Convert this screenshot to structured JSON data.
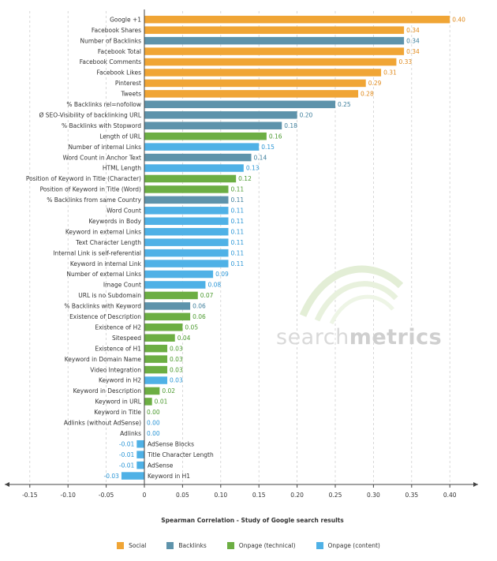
{
  "watermark": {
    "light": "search",
    "bold": "metrics"
  },
  "colors": {
    "Social": "#f0a535",
    "Backlinks": "#5e93ab",
    "Onpage (technical)": "#6cae43",
    "Onpage (content)": "#4fb1e6",
    "Social_text": "#e08a1c",
    "Backlinks_text": "#3f7f9c",
    "Onpage (technical)_text": "#4b9a2e",
    "Onpage (content)_text": "#2b96d6"
  },
  "chart_data": {
    "type": "bar",
    "orientation": "horizontal",
    "title": "",
    "xlabel": "Spearman Correlation - Study of Google search results",
    "ylabel": "",
    "xlim": [
      -0.18,
      0.44
    ],
    "xticks": [
      -0.15,
      -0.1,
      -0.05,
      0,
      0.05,
      0.1,
      0.15,
      0.2,
      0.25,
      0.3,
      0.35,
      0.4
    ],
    "xtick_labels": [
      "-0.15",
      "-0.10",
      "-0.05",
      "0",
      "0.05",
      "0.10",
      "0.15",
      "0.20",
      "0.25",
      "0.30",
      "0.35",
      "0.40"
    ],
    "grid": "vertical dashed",
    "legend_position": "bottom",
    "series": [
      {
        "name": "Social"
      },
      {
        "name": "Backlinks"
      },
      {
        "name": "Onpage (technical)"
      },
      {
        "name": "Onpage (content)"
      }
    ],
    "bars": [
      {
        "label": "Google +1",
        "value": 0.4,
        "value_label": "0.40",
        "series": "Social"
      },
      {
        "label": "Facebook Shares",
        "value": 0.34,
        "value_label": "0.34",
        "series": "Social"
      },
      {
        "label": "Number of Backlinks",
        "value": 0.34,
        "value_label": "0.34",
        "series": "Backlinks"
      },
      {
        "label": "Facebook Total",
        "value": 0.34,
        "value_label": "0.34",
        "series": "Social"
      },
      {
        "label": "Facebook Comments",
        "value": 0.33,
        "value_label": "0.33",
        "series": "Social"
      },
      {
        "label": "Facebook Likes",
        "value": 0.31,
        "value_label": "0.31",
        "series": "Social"
      },
      {
        "label": "Pinterest",
        "value": 0.29,
        "value_label": "0.29",
        "series": "Social"
      },
      {
        "label": "Tweets",
        "value": 0.28,
        "value_label": "0.28",
        "series": "Social"
      },
      {
        "label": "% Backlinks rel=nofollow",
        "value": 0.25,
        "value_label": "0.25",
        "series": "Backlinks"
      },
      {
        "label": "Ø SEO-Visibility of backlinking URL",
        "value": 0.2,
        "value_label": "0.20",
        "series": "Backlinks"
      },
      {
        "label": "% Backlinks with Stopword",
        "value": 0.18,
        "value_label": "0.18",
        "series": "Backlinks"
      },
      {
        "label": "Length of URL",
        "value": 0.16,
        "value_label": "0.16",
        "series": "Onpage (technical)"
      },
      {
        "label": "Number of internal Links",
        "value": 0.15,
        "value_label": "0.15",
        "series": "Onpage (content)"
      },
      {
        "label": "Word Count in Anchor Text",
        "value": 0.14,
        "value_label": "0.14",
        "series": "Backlinks"
      },
      {
        "label": "HTML Length",
        "value": 0.13,
        "value_label": "0.13",
        "series": "Onpage (content)"
      },
      {
        "label": "Position of Keyword in Title (Character)",
        "value": 0.12,
        "value_label": "0.12",
        "series": "Onpage (technical)"
      },
      {
        "label": "Position of Keyword in Title (Word)",
        "value": 0.11,
        "value_label": "0.11",
        "series": "Onpage (technical)"
      },
      {
        "label": "% Backlinks from same Country",
        "value": 0.11,
        "value_label": "0.11",
        "series": "Backlinks"
      },
      {
        "label": "Word Count",
        "value": 0.11,
        "value_label": "0.11",
        "series": "Onpage (content)"
      },
      {
        "label": "Keywords in Body",
        "value": 0.11,
        "value_label": "0.11",
        "series": "Onpage (content)"
      },
      {
        "label": "Keyword in external Links",
        "value": 0.11,
        "value_label": "0.11",
        "series": "Onpage (content)"
      },
      {
        "label": "Text Character Length",
        "value": 0.11,
        "value_label": "0.11",
        "series": "Onpage (content)"
      },
      {
        "label": "Internal Link is self-referential",
        "value": 0.11,
        "value_label": "0.11",
        "series": "Onpage (content)"
      },
      {
        "label": "Keyword in internal Link",
        "value": 0.11,
        "value_label": "0.11",
        "series": "Onpage (content)"
      },
      {
        "label": "Number of external Links",
        "value": 0.09,
        "value_label": "0.09",
        "series": "Onpage (content)"
      },
      {
        "label": "Image Count",
        "value": 0.08,
        "value_label": "0.08",
        "series": "Onpage (content)"
      },
      {
        "label": "URL is no Subdomain",
        "value": 0.07,
        "value_label": "0.07",
        "series": "Onpage (technical)"
      },
      {
        "label": "% Backlinks with Keyword",
        "value": 0.06,
        "value_label": "0.06",
        "series": "Backlinks"
      },
      {
        "label": "Existence of Description",
        "value": 0.06,
        "value_label": "0.06",
        "series": "Onpage (technical)"
      },
      {
        "label": "Existence of H2",
        "value": 0.05,
        "value_label": "0.05",
        "series": "Onpage (technical)"
      },
      {
        "label": "Sitespeed",
        "value": 0.04,
        "value_label": "0.04",
        "series": "Onpage (technical)"
      },
      {
        "label": "Existence of H1",
        "value": 0.03,
        "value_label": "0.03",
        "series": "Onpage (technical)"
      },
      {
        "label": "Keyword in Domain Name",
        "value": 0.03,
        "value_label": "0.03",
        "series": "Onpage (technical)"
      },
      {
        "label": "Video Integration",
        "value": 0.03,
        "value_label": "0.03",
        "series": "Onpage (technical)"
      },
      {
        "label": "Keyword in H2",
        "value": 0.03,
        "value_label": "0.03",
        "series": "Onpage (content)"
      },
      {
        "label": "Keyword in Description",
        "value": 0.02,
        "value_label": "0.02",
        "series": "Onpage (technical)"
      },
      {
        "label": "Keyword in URL",
        "value": 0.01,
        "value_label": "0.01",
        "series": "Onpage (technical)"
      },
      {
        "label": "Keyword in Title",
        "value": 0.0,
        "value_label": "0.00",
        "series": "Onpage (technical)"
      },
      {
        "label": "Adlinks (without AdSense)",
        "value": 0.0,
        "value_label": "0.00",
        "series": "Onpage (content)"
      },
      {
        "label": "Adlinks",
        "value": 0.0,
        "value_label": "0.00",
        "series": "Onpage (content)"
      },
      {
        "label": "AdSense Blocks",
        "value": -0.01,
        "value_label": "-0.01",
        "series": "Onpage (content)"
      },
      {
        "label": "Title Character Length",
        "value": -0.01,
        "value_label": "-0.01",
        "series": "Onpage (content)"
      },
      {
        "label": "AdSense",
        "value": -0.01,
        "value_label": "-0.01",
        "series": "Onpage (content)"
      },
      {
        "label": "Keyword in H1",
        "value": -0.03,
        "value_label": "-0.03",
        "series": "Onpage (content)"
      }
    ]
  }
}
